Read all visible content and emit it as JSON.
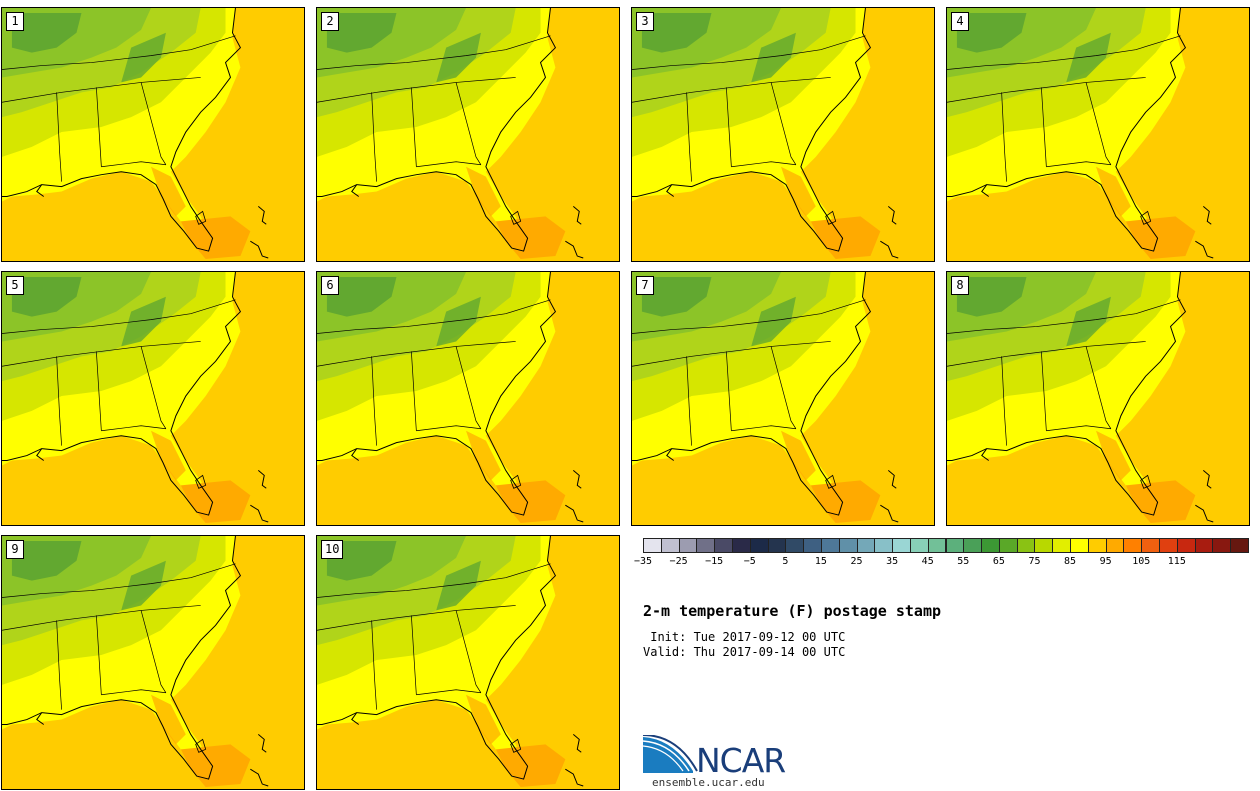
{
  "title": "2-m temperature (F) postage stamp",
  "init": " Init: Tue 2017-09-12 00 UTC",
  "valid": "Valid: Thu 2017-09-14 00 UTC",
  "logo_text": "NCAR",
  "logo_url": "ensemble.ucar.edu",
  "stamps": [
    "1",
    "2",
    "3",
    "4",
    "5",
    "6",
    "7",
    "8",
    "9",
    "10"
  ],
  "colorbar": {
    "colors": [
      "#e4e4ee",
      "#c0c0d0",
      "#9c9cb0",
      "#707088",
      "#4a4a66",
      "#2a2a48",
      "#1c2a48",
      "#24344e",
      "#304a66",
      "#3e6082",
      "#4e7898",
      "#6090a8",
      "#74a8b8",
      "#88c0c8",
      "#9ad6d4",
      "#88d0b8",
      "#72c098",
      "#5cb07c",
      "#4aa058",
      "#3c9834",
      "#5aa828",
      "#8ac214",
      "#b8d800",
      "#e2ee00",
      "#ffff00",
      "#ffcc00",
      "#ffaa00",
      "#ff8000",
      "#f06010",
      "#e04010",
      "#c82810",
      "#a81c10",
      "#881810",
      "#661810"
    ],
    "tick_labels": [
      "−35",
      "−25",
      "−15",
      "−5",
      "5",
      "15",
      "25",
      "35",
      "45",
      "55",
      "65",
      "75",
      "85",
      "95",
      "105",
      "115"
    ]
  }
}
